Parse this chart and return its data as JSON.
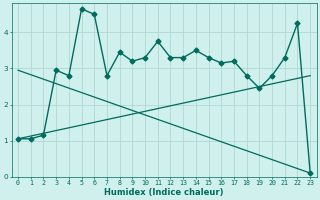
{
  "xlabel": "Humidex (Indice chaleur)",
  "bg_color": "#cff0ec",
  "grid_color": "#b0d8d4",
  "line_color": "#006b5e",
  "xlim": [
    -0.5,
    23.5
  ],
  "ylim": [
    0,
    4.8
  ],
  "xticks": [
    0,
    1,
    2,
    3,
    4,
    5,
    6,
    7,
    8,
    9,
    10,
    11,
    12,
    13,
    14,
    15,
    16,
    17,
    18,
    19,
    20,
    21,
    22,
    23
  ],
  "yticks": [
    0,
    1,
    2,
    3,
    4
  ],
  "data_x": [
    0,
    1,
    2,
    3,
    4,
    5,
    6,
    7,
    8,
    9,
    10,
    11,
    12,
    13,
    14,
    15,
    16,
    17,
    18,
    19,
    20,
    21,
    22,
    23
  ],
  "data_y": [
    1.05,
    1.05,
    1.15,
    2.95,
    2.8,
    4.65,
    4.5,
    2.8,
    3.45,
    3.2,
    3.3,
    3.75,
    3.3,
    3.3,
    3.5,
    3.3,
    3.15,
    3.2,
    2.8,
    2.45,
    2.8,
    3.3,
    4.25,
    0.1
  ],
  "trend1_x": [
    0,
    23
  ],
  "trend1_y": [
    1.05,
    2.8
  ],
  "trend2_x": [
    0,
    23
  ],
  "trend2_y": [
    2.95,
    0.1
  ],
  "xlabel_fontsize": 6.0,
  "tick_fontsize": 4.8
}
